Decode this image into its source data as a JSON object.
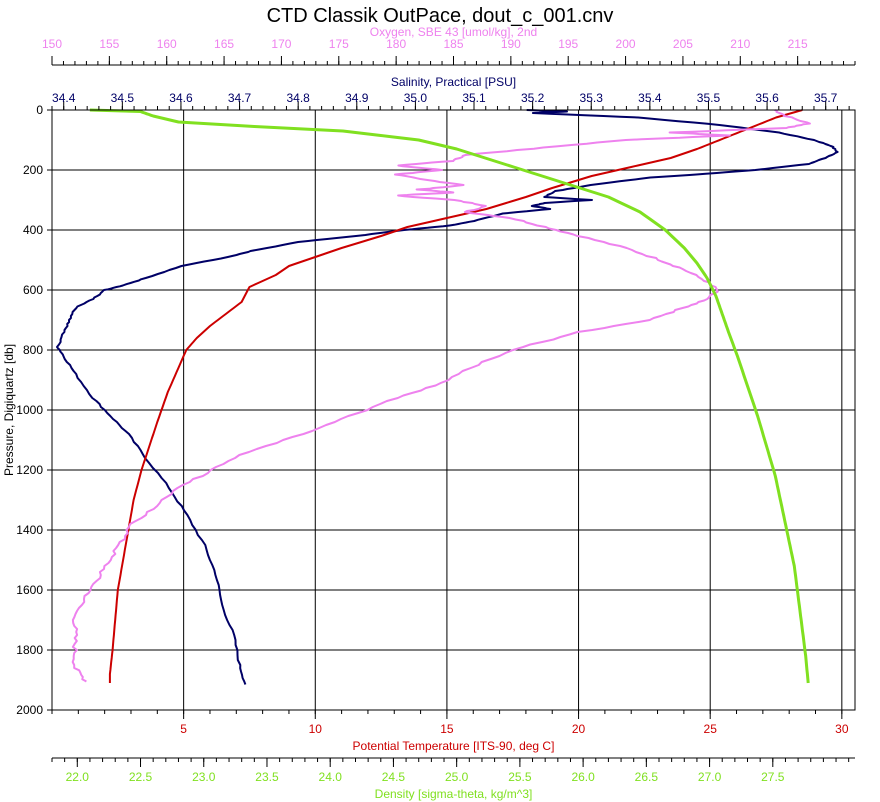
{
  "chart_data": {
    "type": "line",
    "title": "CTD Classik OutPace, dout_c_001.cnv",
    "y_axis": {
      "label": "Pressure, Digiquartz [db]",
      "range": [
        0,
        2000
      ],
      "ticks": [
        0,
        200,
        400,
        600,
        800,
        1000,
        1200,
        1400,
        1600,
        1800,
        2000
      ],
      "inverted": true
    },
    "x_axes": [
      {
        "id": "oxygen",
        "label": "Oxygen, SBE 43 [umol/kg], 2nd",
        "position": "top-outer",
        "color": "#ee82ee",
        "range": [
          150,
          220
        ],
        "ticks": [
          150,
          155,
          160,
          165,
          170,
          175,
          180,
          185,
          190,
          195,
          200,
          205,
          210,
          215
        ]
      },
      {
        "id": "salinity",
        "label": "Salinity, Practical [PSU]",
        "position": "top-inner",
        "color": "#000066",
        "range": [
          34.38,
          35.75
        ],
        "ticks": [
          "34.4",
          "34.5",
          "34.6",
          "34.7",
          "34.8",
          "34.9",
          "35.0",
          "35.1",
          "35.2",
          "35.3",
          "35.4",
          "35.5",
          "35.6",
          "35.7"
        ]
      },
      {
        "id": "temperature",
        "label": "Potential Temperature [ITS-90, deg C]",
        "position": "bottom-inner",
        "color": "#cc0000",
        "range": [
          0,
          30.5
        ],
        "ticks": [
          5,
          10,
          15,
          20,
          25,
          30
        ]
      },
      {
        "id": "density",
        "label": "Density [sigma-theta, kg/m^3]",
        "position": "bottom-outer",
        "color": "#80e020",
        "range": [
          21.8,
          28.15
        ],
        "ticks": [
          "22.0",
          "22.5",
          "23.0",
          "23.5",
          "24.0",
          "24.5",
          "25.0",
          "25.5",
          "26.0",
          "26.5",
          "27.0",
          "27.5"
        ]
      }
    ],
    "grid": true,
    "series": [
      {
        "axis": "salinity",
        "color": "#000066",
        "points": [
          [
            35.19,
            0
          ],
          [
            35.26,
            5
          ],
          [
            35.2,
            10
          ],
          [
            35.38,
            25
          ],
          [
            35.52,
            50
          ],
          [
            35.62,
            75
          ],
          [
            35.68,
            100
          ],
          [
            35.71,
            120
          ],
          [
            35.72,
            140
          ],
          [
            35.7,
            160
          ],
          [
            35.67,
            180
          ],
          [
            35.58,
            200
          ],
          [
            35.48,
            215
          ],
          [
            35.4,
            225
          ],
          [
            35.3,
            250
          ],
          [
            35.24,
            270
          ],
          [
            35.22,
            290
          ],
          [
            35.3,
            300
          ],
          [
            35.22,
            310
          ],
          [
            35.2,
            320
          ],
          [
            35.23,
            330
          ],
          [
            35.15,
            345
          ],
          [
            35.1,
            370
          ],
          [
            35.06,
            385
          ],
          [
            34.98,
            400
          ],
          [
            34.9,
            420
          ],
          [
            34.8,
            440
          ],
          [
            34.72,
            470
          ],
          [
            34.68,
            490
          ],
          [
            34.6,
            520
          ],
          [
            34.54,
            560
          ],
          [
            34.5,
            585
          ],
          [
            34.47,
            600
          ],
          [
            34.45,
            630
          ],
          [
            34.42,
            660
          ],
          [
            34.41,
            700
          ],
          [
            34.4,
            740
          ],
          [
            34.39,
            790
          ],
          [
            34.4,
            820
          ],
          [
            34.42,
            880
          ],
          [
            34.45,
            960
          ],
          [
            34.48,
            1020
          ],
          [
            34.51,
            1080
          ],
          [
            34.54,
            1160
          ],
          [
            34.58,
            1260
          ],
          [
            34.61,
            1350
          ],
          [
            34.64,
            1450
          ],
          [
            34.66,
            1550
          ],
          [
            34.67,
            1650
          ],
          [
            34.69,
            1750
          ],
          [
            34.7,
            1850
          ],
          [
            34.71,
            1915
          ]
        ]
      },
      {
        "axis": "temperature",
        "color": "#cc0000",
        "points": [
          [
            28.5,
            0
          ],
          [
            28.3,
            5
          ],
          [
            27.5,
            25
          ],
          [
            26.5,
            60
          ],
          [
            25.5,
            95
          ],
          [
            24.5,
            130
          ],
          [
            23.5,
            160
          ],
          [
            22,
            190
          ],
          [
            20.5,
            220
          ],
          [
            19,
            260
          ],
          [
            18,
            290
          ],
          [
            16.5,
            330
          ],
          [
            15,
            360
          ],
          [
            13.5,
            390
          ],
          [
            12.5,
            420
          ],
          [
            11,
            460
          ],
          [
            10,
            490
          ],
          [
            9,
            520
          ],
          [
            8.5,
            550
          ],
          [
            7.5,
            590
          ],
          [
            7.2,
            640
          ],
          [
            6.6,
            680
          ],
          [
            6,
            720
          ],
          [
            5.5,
            760
          ],
          [
            5.1,
            800
          ],
          [
            4.8,
            860
          ],
          [
            4.4,
            940
          ],
          [
            4,
            1040
          ],
          [
            3.7,
            1120
          ],
          [
            3.4,
            1200
          ],
          [
            3.1,
            1300
          ],
          [
            2.9,
            1400
          ],
          [
            2.7,
            1500
          ],
          [
            2.5,
            1600
          ],
          [
            2.4,
            1700
          ],
          [
            2.3,
            1800
          ],
          [
            2.2,
            1880
          ],
          [
            2.2,
            1910
          ]
        ]
      },
      {
        "axis": "oxygen",
        "color": "#ee82ee",
        "points": [
          [
            213,
            0
          ],
          [
            214,
            20
          ],
          [
            216,
            45
          ],
          [
            214,
            60
          ],
          [
            204,
            75
          ],
          [
            209,
            85
          ],
          [
            200,
            100
          ],
          [
            193,
            125
          ],
          [
            186,
            150
          ],
          [
            185,
            170
          ],
          [
            180,
            185
          ],
          [
            184,
            200
          ],
          [
            180,
            215
          ],
          [
            182,
            230
          ],
          [
            186,
            250
          ],
          [
            182,
            265
          ],
          [
            185,
            275
          ],
          [
            180,
            285
          ],
          [
            185,
            300
          ],
          [
            188,
            320
          ],
          [
            186,
            340
          ],
          [
            190,
            360
          ],
          [
            193,
            390
          ],
          [
            196,
            420
          ],
          [
            200,
            460
          ],
          [
            203,
            500
          ],
          [
            205,
            530
          ],
          [
            207,
            570
          ],
          [
            208,
            600
          ],
          [
            207,
            630
          ],
          [
            205,
            660
          ],
          [
            202,
            700
          ],
          [
            196,
            740
          ],
          [
            191,
            790
          ],
          [
            187,
            850
          ],
          [
            184,
            910
          ],
          [
            180,
            960
          ],
          [
            176,
            1020
          ],
          [
            172,
            1080
          ],
          [
            167,
            1140
          ],
          [
            164,
            1200
          ],
          [
            161,
            1260
          ],
          [
            159,
            1320
          ],
          [
            157,
            1380
          ],
          [
            156,
            1440
          ],
          [
            155,
            1500
          ],
          [
            154,
            1560
          ],
          [
            153,
            1620
          ],
          [
            152,
            1680
          ],
          [
            152,
            1740
          ],
          [
            152,
            1800
          ],
          [
            152,
            1860
          ],
          [
            153,
            1905
          ]
        ]
      },
      {
        "axis": "density",
        "color": "#80e020",
        "points": [
          [
            22.1,
            0
          ],
          [
            22.5,
            5
          ],
          [
            22.6,
            20
          ],
          [
            22.8,
            40
          ],
          [
            23.4,
            55
          ],
          [
            24.1,
            70
          ],
          [
            24.7,
            100
          ],
          [
            25.0,
            130
          ],
          [
            25.3,
            170
          ],
          [
            25.6,
            210
          ],
          [
            25.9,
            250
          ],
          [
            26.2,
            290
          ],
          [
            26.45,
            340
          ],
          [
            26.65,
            400
          ],
          [
            26.8,
            460
          ],
          [
            26.9,
            510
          ],
          [
            26.98,
            560
          ],
          [
            27.05,
            620
          ],
          [
            27.1,
            680
          ],
          [
            27.15,
            740
          ],
          [
            27.22,
            820
          ],
          [
            27.3,
            920
          ],
          [
            27.38,
            1020
          ],
          [
            27.45,
            1120
          ],
          [
            27.52,
            1220
          ],
          [
            27.57,
            1320
          ],
          [
            27.62,
            1420
          ],
          [
            27.67,
            1520
          ],
          [
            27.7,
            1620
          ],
          [
            27.73,
            1720
          ],
          [
            27.76,
            1820
          ],
          [
            27.78,
            1910
          ]
        ]
      }
    ]
  }
}
